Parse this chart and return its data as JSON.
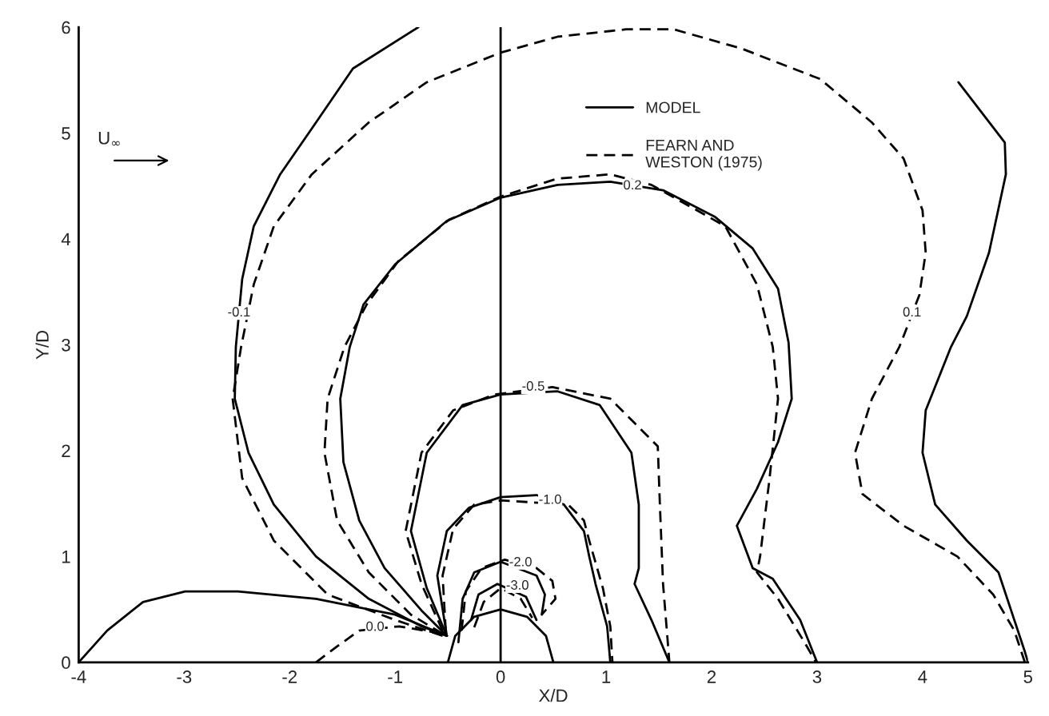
{
  "chart_data": {
    "type": "line",
    "xlabel": "X/D",
    "ylabel": "Y/D",
    "xlim": [
      -4,
      5
    ],
    "ylim": [
      0,
      6
    ],
    "xticks": [
      -4,
      -3,
      -2,
      -1,
      0,
      1,
      2,
      3,
      4,
      5
    ],
    "yticks": [
      0,
      1,
      2,
      3,
      4,
      5,
      6
    ],
    "grid": false,
    "legend": "top",
    "marker": "none",
    "ref_lines": [
      {
        "axis": "x",
        "value": 0,
        "color": "#000000",
        "line_style": "solid"
      }
    ],
    "series": [
      {
        "name": "MODEL",
        "color": "#000000",
        "line_style": "solid",
        "x": [
          -0.51,
          -0.75,
          -1.25,
          -1.75,
          -2.15,
          -2.39,
          -2.52,
          -2.51,
          -2.45,
          -2.34,
          -2.09,
          -1.75,
          -1.4,
          -0.78
        ],
        "values": [
          0.25,
          0.34,
          0.6,
          1.0,
          1.49,
          1.98,
          2.49,
          2.98,
          3.62,
          4.12,
          4.61,
          5.1,
          5.61,
          6.0
        ]
      },
      {
        "name": "FEARN AND\nWESTON (1975)",
        "color": "#000000",
        "line_style": "dashed",
        "x": [
          -0.55,
          -1.0,
          -1.64,
          -2.15,
          -2.45,
          -2.54,
          -2.46,
          -2.34,
          -2.15,
          -1.79,
          -1.25,
          -0.7,
          0,
          0.54,
          1.19,
          1.64,
          2.28,
          3.03,
          3.52,
          3.82,
          4.0,
          4.03,
          3.97,
          3.82,
          3.78,
          3.52,
          3.36,
          3.43,
          3.82,
          4.33,
          4.67,
          4.87,
          4.97
        ],
        "values": [
          0.25,
          0.4,
          0.64,
          1.15,
          1.74,
          2.49,
          2.98,
          3.57,
          4.12,
          4.61,
          5.1,
          5.48,
          5.76,
          5.91,
          5.98,
          5.98,
          5.8,
          5.51,
          5.1,
          4.76,
          4.27,
          3.87,
          3.47,
          3.08,
          2.98,
          2.49,
          1.98,
          1.59,
          1.29,
          1.0,
          0.64,
          0.3,
          0
        ]
      },
      {
        "color": "#000000",
        "line_style": "solid",
        "x": [
          4.34,
          4.78,
          4.79,
          4.63,
          4.42,
          4.27,
          4.03,
          4.0,
          4.12,
          4.42,
          4.72,
          4.87,
          4.97,
          5.0
        ],
        "values": [
          5.48,
          4.91,
          4.61,
          3.87,
          3.27,
          2.98,
          2.38,
          1.98,
          1.49,
          1.15,
          0.85,
          0.4,
          0.1,
          0
        ]
      },
      {
        "color": "#000000",
        "line_style": "solid",
        "x": [
          -0.51,
          -0.75,
          -1.1,
          -1.34,
          -1.49,
          -1.52,
          -1.43,
          -1.3,
          -1.0,
          -0.51,
          0,
          0.54,
          1.04,
          1.54,
          2.03,
          2.39,
          2.63,
          2.73,
          2.76,
          2.63,
          2.43,
          2.24,
          2.39,
          2.58,
          2.84,
          3.0
        ],
        "values": [
          0.25,
          0.49,
          0.89,
          1.34,
          1.89,
          2.49,
          2.98,
          3.38,
          3.76,
          4.17,
          4.39,
          4.51,
          4.54,
          4.46,
          4.21,
          3.91,
          3.53,
          3.02,
          2.49,
          2.08,
          1.64,
          1.29,
          0.89,
          0.79,
          0.4,
          0
        ]
      },
      {
        "color": "#000000",
        "line_style": "dashed",
        "x": [
          -0.55,
          -0.85,
          -1.25,
          -1.55,
          -1.67,
          -1.64,
          -1.48,
          -1.27,
          -0.97,
          -0.49,
          0,
          0.54,
          1.04,
          1.43,
          2.13,
          2.43,
          2.58,
          2.63,
          2.55,
          2.46,
          2.43,
          2.63,
          2.88,
          2.99
        ],
        "values": [
          0.27,
          0.45,
          0.85,
          1.34,
          1.98,
          2.49,
          2.98,
          3.38,
          3.79,
          4.18,
          4.4,
          4.57,
          4.61,
          4.51,
          4.12,
          3.57,
          2.98,
          2.49,
          1.74,
          1.0,
          0.85,
          0.6,
          0.19,
          0
        ]
      },
      {
        "color": "#000000",
        "line_style": "solid",
        "x": [
          -0.51,
          -0.7,
          -0.85,
          -0.7,
          -0.36,
          0,
          0.54,
          0.94,
          1.24,
          1.31,
          1.31,
          1.27,
          1.43,
          1.6
        ],
        "values": [
          0.25,
          0.7,
          1.24,
          1.98,
          2.43,
          2.53,
          2.56,
          2.43,
          1.98,
          1.49,
          0.89,
          0.74,
          0.4,
          0
        ]
      },
      {
        "color": "#000000",
        "line_style": "dashed",
        "x": [
          -0.55,
          -0.75,
          -0.9,
          -0.75,
          -0.45,
          -0.06,
          0.49,
          1.04,
          1.49,
          1.51,
          1.54,
          1.58,
          1.6
        ],
        "values": [
          0.3,
          0.74,
          1.24,
          1.98,
          2.38,
          2.53,
          2.6,
          2.49,
          2.04,
          1.49,
          0.74,
          0.25,
          0
        ]
      },
      {
        "color": "#000000",
        "line_style": "solid",
        "x": [
          -0.51,
          -0.6,
          -0.51,
          -0.3,
          0,
          0.34,
          0.6,
          0.79,
          0.84,
          0.9,
          1.01,
          1.04
        ],
        "values": [
          0.25,
          0.82,
          1.24,
          1.46,
          1.56,
          1.58,
          1.49,
          1.24,
          1.0,
          0.74,
          0.34,
          0
        ]
      },
      {
        "color": "#000000",
        "line_style": "dashed",
        "x": [
          -0.52,
          -0.55,
          -0.45,
          -0.25,
          0,
          0.64,
          0.79,
          0.84,
          0.97,
          1.04,
          1.06
        ],
        "values": [
          0.3,
          0.82,
          1.26,
          1.49,
          1.53,
          1.49,
          1.34,
          1.15,
          0.7,
          0.34,
          0
        ]
      },
      {
        "color": "#000000",
        "line_style": "solid",
        "x": [
          -0.4,
          -0.36,
          -0.25,
          0,
          0.34,
          0.42,
          0.39
        ],
        "values": [
          0.19,
          0.6,
          0.85,
          0.95,
          0.82,
          0.64,
          0.45
        ]
      },
      {
        "color": "#000000",
        "line_style": "dashed",
        "x": [
          -0.37,
          -0.33,
          -0.18,
          0.04,
          0.34,
          0.49,
          0.52,
          0.39
        ],
        "values": [
          0.3,
          0.67,
          0.89,
          0.97,
          0.89,
          0.77,
          0.6,
          0.45
        ]
      },
      {
        "color": "#000000",
        "line_style": "solid",
        "x": [
          -0.28,
          -0.21,
          -0.03,
          0.24,
          0.34
        ],
        "values": [
          0.4,
          0.64,
          0.74,
          0.62,
          0.4
        ]
      },
      {
        "color": "#000000",
        "line_style": "dashed",
        "x": [
          -0.25,
          -0.16,
          0,
          0.19,
          0.3
        ],
        "values": [
          0.33,
          0.57,
          0.7,
          0.6,
          0.42
        ]
      },
      {
        "color": "#000000",
        "line_style": "dashed",
        "x": [
          -1.75,
          -1.55,
          -1.34,
          -0.96,
          -0.55
        ],
        "values": [
          0,
          0.15,
          0.3,
          0.34,
          0.27
        ]
      },
      {
        "color": "#000000",
        "line_style": "solid",
        "x": [
          -4,
          -3.73,
          -3.39,
          -2.99,
          -2.49,
          -1.75,
          -1.0,
          -0.51
        ],
        "values": [
          0,
          0.3,
          0.57,
          0.67,
          0.67,
          0.6,
          0.45,
          0.25
        ]
      },
      {
        "color": "#000000",
        "line_style": "solid",
        "x": [
          -0.5,
          -0.43,
          -0.25,
          0,
          0.25,
          0.43,
          0.5
        ],
        "values": [
          0,
          0.25,
          0.43,
          0.5,
          0.43,
          0.25,
          0
        ]
      }
    ],
    "annotations": [
      {
        "text": "-0.1",
        "x": -2.48,
        "y": 3.3
      },
      {
        "text": "0.2",
        "x": 1.25,
        "y": 4.5
      },
      {
        "text": "0.1",
        "x": 3.9,
        "y": 3.3
      },
      {
        "text": "-0.5",
        "x": 0.31,
        "y": 2.6
      },
      {
        "text": "-1.0",
        "x": 0.47,
        "y": 1.53
      },
      {
        "text": "-2.0",
        "x": 0.19,
        "y": 0.94
      },
      {
        "text": "-3.0",
        "x": 0.16,
        "y": 0.72
      },
      {
        "text": "0.0",
        "x": -1.19,
        "y": 0.33
      },
      "U$_{∞}$"
    ]
  }
}
